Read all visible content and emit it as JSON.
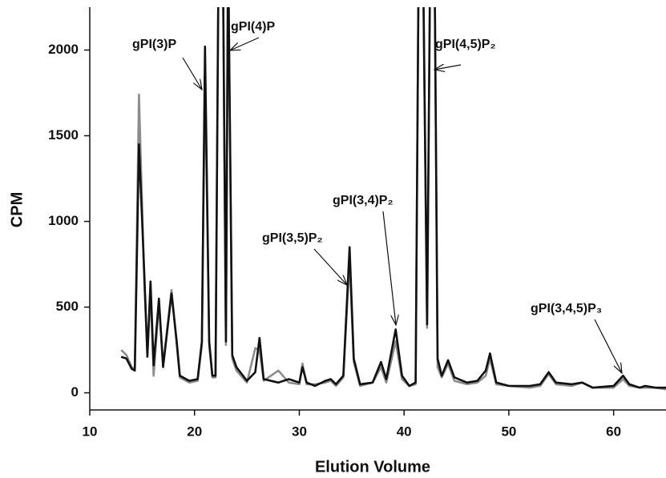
{
  "chart_data": {
    "type": "line",
    "xlabel": "Elution Volume",
    "ylabel": "CPM",
    "xlim": [
      10,
      65
    ],
    "ylim": [
      -100,
      2250
    ],
    "xticks": [
      10,
      20,
      30,
      40,
      50,
      60
    ],
    "yticks": [
      0,
      500,
      1000,
      1500,
      2000
    ],
    "grid": false,
    "x": [
      13,
      13.5,
      14,
      14.3,
      14.7,
      15.2,
      15.5,
      15.8,
      16.1,
      16.6,
      17,
      17.8,
      18.3,
      18.6,
      19.5,
      20.3,
      20.7,
      21,
      21.4,
      21.7,
      22,
      22.3,
      22.7,
      23,
      23.2,
      23.6,
      24,
      25,
      25.8,
      26.2,
      26.6,
      28,
      29,
      30,
      30.3,
      30.7,
      31.5,
      32.5,
      33,
      33.5,
      34.2,
      34.8,
      35.2,
      35.8,
      37,
      37.8,
      38.3,
      39.2,
      39.8,
      40.5,
      41.1,
      41.4,
      41.8,
      42.2,
      42.5,
      42.9,
      43.2,
      43.6,
      44.2,
      44.8,
      46,
      47,
      47.8,
      48.2,
      48.8,
      50,
      52,
      53,
      53.8,
      54.5,
      56,
      57,
      58,
      60,
      60.9,
      61.5,
      62.5,
      63,
      64,
      65
    ],
    "series": [
      {
        "name": "gray",
        "color": "#8c8c8c",
        "values": [
          250,
          220,
          150,
          140,
          1740,
          650,
          230,
          600,
          100,
          520,
          160,
          600,
          280,
          90,
          60,
          70,
          280,
          1900,
          280,
          90,
          90,
          2600,
          2600,
          280,
          2600,
          200,
          130,
          60,
          260,
          250,
          70,
          130,
          60,
          50,
          170,
          50,
          50,
          60,
          70,
          40,
          90,
          780,
          180,
          40,
          60,
          150,
          60,
          300,
          80,
          40,
          50,
          2600,
          2600,
          380,
          2600,
          2600,
          150,
          90,
          170,
          70,
          50,
          60,
          100,
          200,
          50,
          40,
          30,
          40,
          110,
          50,
          40,
          60,
          30,
          30,
          80,
          40,
          30,
          30,
          30,
          20
        ]
      },
      {
        "name": "black",
        "color": "#111111",
        "values": [
          210,
          200,
          140,
          130,
          1450,
          700,
          210,
          650,
          160,
          550,
          150,
          580,
          300,
          100,
          70,
          80,
          300,
          2020,
          300,
          100,
          100,
          2600,
          2600,
          300,
          2600,
          220,
          150,
          70,
          120,
          320,
          80,
          60,
          80,
          60,
          150,
          60,
          40,
          70,
          80,
          50,
          100,
          850,
          200,
          50,
          60,
          180,
          80,
          370,
          100,
          40,
          60,
          2600,
          2600,
          400,
          2600,
          2600,
          200,
          100,
          190,
          90,
          60,
          70,
          130,
          230,
          60,
          40,
          40,
          50,
          120,
          60,
          50,
          60,
          30,
          40,
          100,
          50,
          30,
          40,
          30,
          30
        ]
      }
    ],
    "annotations": [
      "gPI(3)P",
      "gPI(4)P",
      "gPI(4,5)P₂",
      "gPI(3,4)P₂",
      "gPI(3,5)P₂",
      "gPI(3,4,5)P₃"
    ]
  }
}
